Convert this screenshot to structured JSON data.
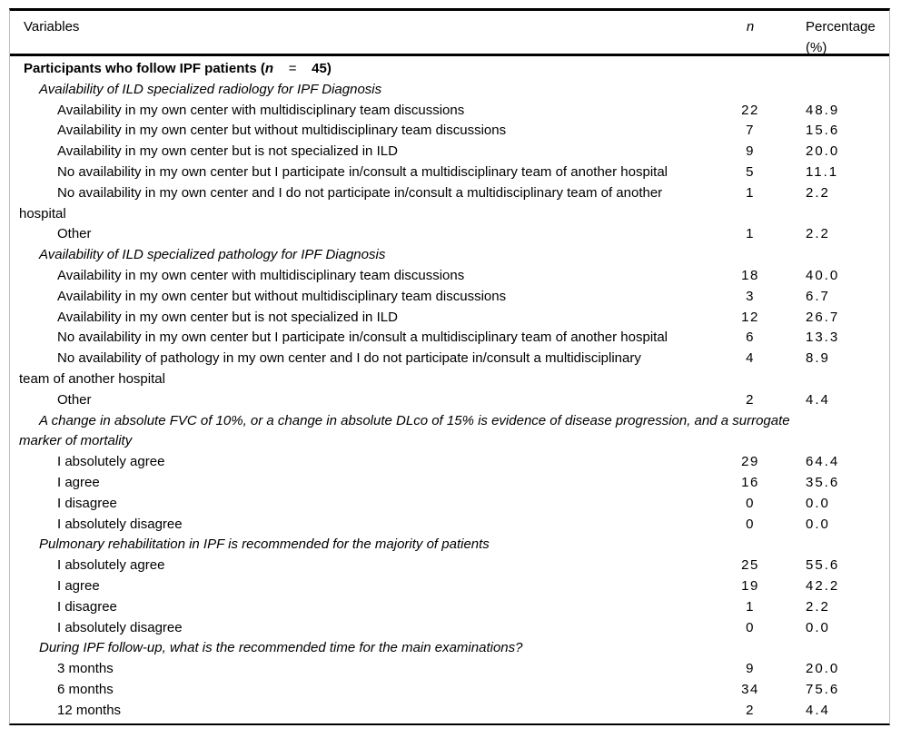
{
  "header": {
    "variables": "Variables",
    "n": "n",
    "percentage": "Percentage (%)"
  },
  "rows": [
    {
      "type": "section",
      "parts": {
        "prefix": "Participants who follow IPF patients (",
        "nvar": "n",
        "eq": "    =    ",
        "suffix": "45)"
      }
    },
    {
      "type": "sub",
      "text": "Availability of ILD specialized radiology for IPF Diagnosis"
    },
    {
      "type": "item",
      "text": "Availability in my own center with multidisciplinary team discussions",
      "n": "22",
      "pct": "48.9"
    },
    {
      "type": "item",
      "text": "Availability in my own center but without multidisciplinary team discussions",
      "n": "7",
      "pct": "15.6"
    },
    {
      "type": "item",
      "text": "Availability in my own center but is not specialized in ILD",
      "n": "9",
      "pct": "20.0"
    },
    {
      "type": "item",
      "text": "No availability in my own center but I participate in/consult a multidisciplinary team of another hospital",
      "n": "5",
      "pct": "11.1"
    },
    {
      "type": "item",
      "line1": "No availability in my own center and I do not participate in/consult a multidisciplinary team of another",
      "line2": "hospital",
      "n": "1",
      "pct": "2.2"
    },
    {
      "type": "item",
      "text": "Other",
      "n": "1",
      "pct": "2.2"
    },
    {
      "type": "sub",
      "text": "Availability of ILD specialized pathology for IPF Diagnosis"
    },
    {
      "type": "item",
      "text": "Availability in my own center with multidisciplinary team discussions",
      "n": "18",
      "pct": "40.0"
    },
    {
      "type": "item",
      "text": "Availability in my own center but without multidisciplinary team discussions",
      "n": "3",
      "pct": "6.7"
    },
    {
      "type": "item",
      "text": "Availability in my own center but is not specialized in ILD",
      "n": "12",
      "pct": "26.7"
    },
    {
      "type": "item",
      "text": "No availability in my own center but I participate in/consult a multidisciplinary team of another hospital",
      "n": "6",
      "pct": "13.3"
    },
    {
      "type": "item",
      "line1": "No availability of pathology in my own center and I do not participate in/consult a multidisciplinary",
      "line2": "team of another hospital",
      "n": "4",
      "pct": "8.9"
    },
    {
      "type": "item",
      "text": "Other",
      "n": "2",
      "pct": "4.4"
    },
    {
      "type": "sub",
      "line1": "A change in absolute FVC of 10%, or a change in absolute DLco of 15% is evidence of disease progression, and a surrogate",
      "line2": "marker of mortality"
    },
    {
      "type": "item",
      "text": "I absolutely agree",
      "n": "29",
      "pct": "64.4"
    },
    {
      "type": "item",
      "text": "I agree",
      "n": "16",
      "pct": "35.6"
    },
    {
      "type": "item",
      "text": "I disagree",
      "n": "0",
      "pct": "0.0"
    },
    {
      "type": "item",
      "text": "I absolutely disagree",
      "n": "0",
      "pct": "0.0"
    },
    {
      "type": "sub",
      "text": "Pulmonary rehabilitation in IPF is recommended for the majority of patients"
    },
    {
      "type": "item",
      "text": "I absolutely agree",
      "n": "25",
      "pct": "55.6"
    },
    {
      "type": "item",
      "text": "I agree",
      "n": "19",
      "pct": "42.2"
    },
    {
      "type": "item",
      "text": "I disagree",
      "n": "1",
      "pct": "2.2"
    },
    {
      "type": "item",
      "text": "I absolutely disagree",
      "n": "0",
      "pct": "0.0"
    },
    {
      "type": "sub",
      "text": "During IPF follow-up, what is the recommended time for the main examinations?"
    },
    {
      "type": "item",
      "text": "3 months",
      "n": "9",
      "pct": "20.0"
    },
    {
      "type": "item",
      "text": "6 months",
      "n": "34",
      "pct": "75.6"
    },
    {
      "type": "item",
      "text": "12 months",
      "n": "2",
      "pct": "4.4"
    }
  ]
}
